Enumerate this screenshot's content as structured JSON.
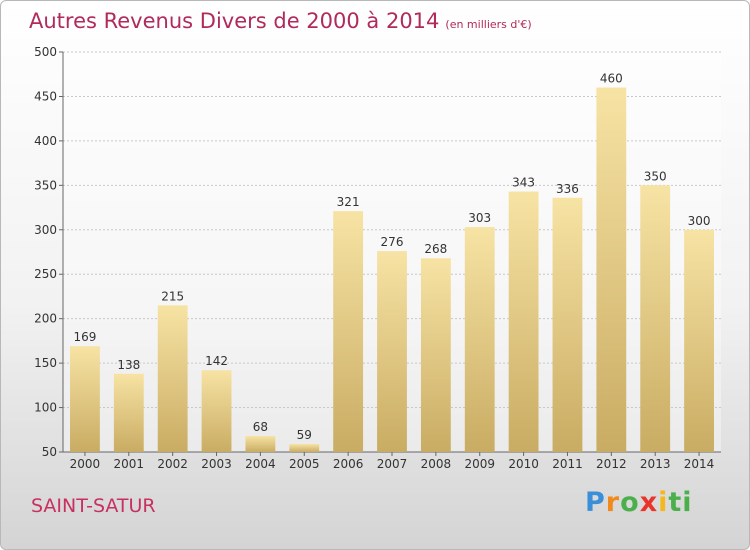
{
  "header": {
    "title": "Autres Revenus Divers de 2000 à 2014",
    "unit": "(en milliers d'€)"
  },
  "footer": {
    "place": "SAINT-SATUR",
    "logo_letters": [
      "P",
      "r",
      "o",
      "x",
      "i",
      "ti"
    ]
  },
  "chart_data": {
    "type": "bar",
    "title": "Autres Revenus Divers de 2000 à 2014",
    "subtitle": "(en milliers d'€)",
    "categories": [
      "2000",
      "2001",
      "2002",
      "2003",
      "2004",
      "2005",
      "2006",
      "2007",
      "2008",
      "2009",
      "2010",
      "2011",
      "2012",
      "2013",
      "2014"
    ],
    "values": [
      169,
      138,
      215,
      142,
      68,
      59,
      321,
      276,
      268,
      303,
      343,
      336,
      460,
      350,
      300
    ],
    "ylim": [
      50,
      500
    ],
    "yticks": [
      50,
      100,
      150,
      200,
      250,
      300,
      350,
      400,
      450,
      500
    ],
    "grid": true,
    "bar_color_top": "#f7e3a4",
    "bar_color_bottom": "#c9ac63",
    "title_color": "#b02a5a"
  }
}
